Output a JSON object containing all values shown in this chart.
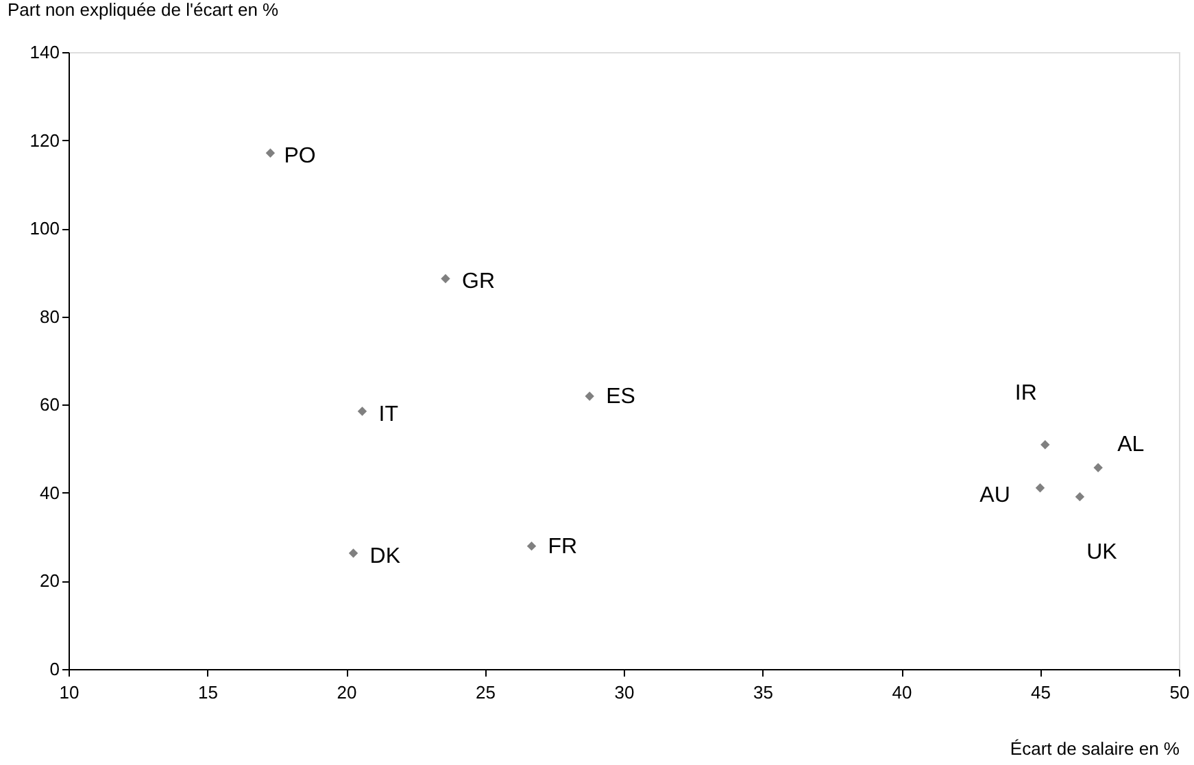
{
  "chart_data": {
    "type": "scatter",
    "xlabel": "Écart de salaire en %",
    "ylabel": "Part non expliquée de l'écart en %",
    "x": [
      17.27,
      23.58,
      20.58,
      28.77,
      20.26,
      26.68,
      45.18,
      47.09,
      45.0,
      46.43
    ],
    "series": [
      {
        "color": "#808080",
        "values": [
          117.1,
          88.6,
          58.5,
          61.9,
          26.3,
          27.9,
          50.9,
          45.7,
          41.1,
          39.1
        ]
      }
    ],
    "annotations": [
      {
        "text": "PO",
        "x": 17.27,
        "y": 117.1
      },
      {
        "text": "GR",
        "x": 23.58,
        "y": 88.6
      },
      {
        "text": "IT",
        "x": 20.58,
        "y": 58.5
      },
      {
        "text": "ES",
        "x": 28.77,
        "y": 61.9
      },
      {
        "text": "DK",
        "x": 20.26,
        "y": 26.3
      },
      {
        "text": "FR",
        "x": 26.68,
        "y": 27.9
      },
      {
        "text": "IR",
        "x": 45.18,
        "y": 50.9
      },
      {
        "text": "AL",
        "x": 47.09,
        "y": 45.7
      },
      {
        "text": "AU",
        "x": 45.0,
        "y": 41.1
      },
      {
        "text": "UK",
        "x": 46.43,
        "y": 39.1
      }
    ],
    "xlim": [
      10,
      50
    ],
    "xticks": [
      10,
      15,
      20,
      25,
      30,
      35,
      40,
      45,
      50
    ],
    "ylim": [
      0,
      140
    ],
    "yticks": [
      0,
      20,
      40,
      60,
      80,
      100,
      120,
      140
    ],
    "marker": "diamond",
    "grid": false
  }
}
